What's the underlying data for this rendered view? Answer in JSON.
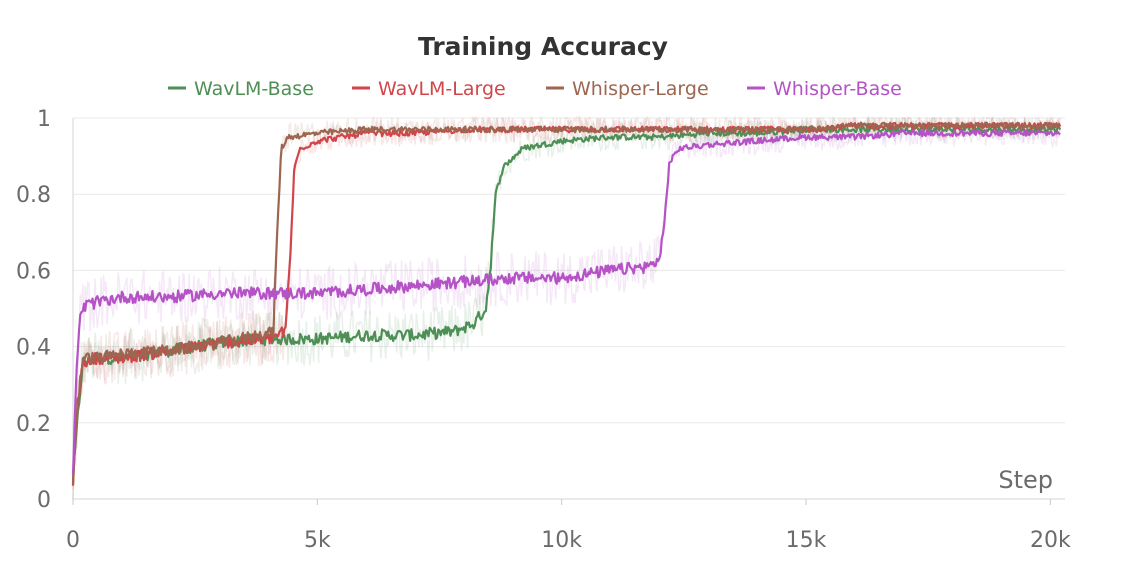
{
  "chart_data": {
    "type": "line",
    "title": "Training Accuracy",
    "xlabel": "Step",
    "ylabel": "",
    "xlim": [
      0,
      20300
    ],
    "ylim": [
      0,
      1
    ],
    "x_ticks": [
      0,
      5000,
      10000,
      15000,
      20000
    ],
    "x_tick_labels": [
      "0",
      "5k",
      "10k",
      "15k",
      "20k"
    ],
    "y_ticks": [
      0,
      0.2,
      0.4,
      0.6,
      0.8,
      1
    ],
    "y_tick_labels": [
      "0",
      "0.2",
      "0.4",
      "0.6",
      "0.8",
      "1"
    ],
    "grid": true,
    "legend_position": "top-center",
    "series": [
      {
        "name": "WavLM-Base",
        "color": "#4e8f56",
        "points": [
          [
            0,
            0.05
          ],
          [
            100,
            0.22
          ],
          [
            200,
            0.36
          ],
          [
            500,
            0.37
          ],
          [
            1000,
            0.37
          ],
          [
            2000,
            0.39
          ],
          [
            3000,
            0.41
          ],
          [
            4000,
            0.42
          ],
          [
            5000,
            0.42
          ],
          [
            6000,
            0.43
          ],
          [
            7000,
            0.43
          ],
          [
            7800,
            0.44
          ],
          [
            8200,
            0.46
          ],
          [
            8450,
            0.5
          ],
          [
            8550,
            0.62
          ],
          [
            8650,
            0.8
          ],
          [
            8800,
            0.87
          ],
          [
            9200,
            0.92
          ],
          [
            9600,
            0.93
          ],
          [
            10000,
            0.94
          ],
          [
            11000,
            0.95
          ],
          [
            12000,
            0.95
          ],
          [
            13000,
            0.96
          ],
          [
            14000,
            0.96
          ],
          [
            15000,
            0.97
          ],
          [
            16000,
            0.97
          ],
          [
            17000,
            0.97
          ],
          [
            18000,
            0.97
          ],
          [
            19000,
            0.97
          ],
          [
            20000,
            0.97
          ],
          [
            20200,
            0.97
          ]
        ]
      },
      {
        "name": "WavLM-Large",
        "color": "#d0464a",
        "points": [
          [
            0,
            0.05
          ],
          [
            100,
            0.25
          ],
          [
            200,
            0.36
          ],
          [
            500,
            0.37
          ],
          [
            1000,
            0.37
          ],
          [
            2000,
            0.39
          ],
          [
            3000,
            0.41
          ],
          [
            4000,
            0.42
          ],
          [
            4350,
            0.44
          ],
          [
            4450,
            0.65
          ],
          [
            4530,
            0.87
          ],
          [
            4650,
            0.92
          ],
          [
            5000,
            0.94
          ],
          [
            5500,
            0.95
          ],
          [
            6000,
            0.96
          ],
          [
            7000,
            0.96
          ],
          [
            8000,
            0.97
          ],
          [
            9000,
            0.97
          ],
          [
            10000,
            0.97
          ],
          [
            11000,
            0.97
          ],
          [
            12000,
            0.97
          ],
          [
            13000,
            0.97
          ],
          [
            14000,
            0.97
          ],
          [
            15000,
            0.97
          ],
          [
            16000,
            0.98
          ],
          [
            17000,
            0.98
          ],
          [
            18000,
            0.98
          ],
          [
            19000,
            0.98
          ],
          [
            20000,
            0.98
          ],
          [
            20200,
            0.98
          ]
        ]
      },
      {
        "name": "Whisper-Large",
        "color": "#9c6650",
        "points": [
          [
            0,
            0.05
          ],
          [
            100,
            0.25
          ],
          [
            200,
            0.37
          ],
          [
            500,
            0.37
          ],
          [
            1000,
            0.38
          ],
          [
            2000,
            0.39
          ],
          [
            3000,
            0.41
          ],
          [
            3800,
            0.43
          ],
          [
            4100,
            0.44
          ],
          [
            4180,
            0.7
          ],
          [
            4260,
            0.92
          ],
          [
            4400,
            0.95
          ],
          [
            5000,
            0.96
          ],
          [
            6000,
            0.97
          ],
          [
            7000,
            0.97
          ],
          [
            8000,
            0.97
          ],
          [
            9000,
            0.97
          ],
          [
            10000,
            0.97
          ],
          [
            11000,
            0.97
          ],
          [
            12000,
            0.97
          ],
          [
            13000,
            0.97
          ],
          [
            14000,
            0.97
          ],
          [
            15000,
            0.97
          ],
          [
            16000,
            0.98
          ],
          [
            17000,
            0.98
          ],
          [
            18000,
            0.98
          ],
          [
            19000,
            0.98
          ],
          [
            20000,
            0.98
          ],
          [
            20200,
            0.98
          ]
        ]
      },
      {
        "name": "Whisper-Base",
        "color": "#b452c6",
        "points": [
          [
            0,
            0.05
          ],
          [
            60,
            0.3
          ],
          [
            150,
            0.49
          ],
          [
            300,
            0.51
          ],
          [
            600,
            0.52
          ],
          [
            1000,
            0.53
          ],
          [
            2000,
            0.53
          ],
          [
            3000,
            0.54
          ],
          [
            4000,
            0.54
          ],
          [
            5000,
            0.54
          ],
          [
            6000,
            0.55
          ],
          [
            7000,
            0.56
          ],
          [
            8000,
            0.57
          ],
          [
            9000,
            0.58
          ],
          [
            10000,
            0.58
          ],
          [
            11000,
            0.6
          ],
          [
            11800,
            0.61
          ],
          [
            12000,
            0.63
          ],
          [
            12100,
            0.72
          ],
          [
            12200,
            0.88
          ],
          [
            12400,
            0.92
          ],
          [
            13000,
            0.93
          ],
          [
            14000,
            0.94
          ],
          [
            15000,
            0.95
          ],
          [
            16000,
            0.95
          ],
          [
            17000,
            0.96
          ],
          [
            18000,
            0.96
          ],
          [
            19000,
            0.96
          ],
          [
            20000,
            0.96
          ],
          [
            20200,
            0.96
          ]
        ]
      }
    ]
  }
}
